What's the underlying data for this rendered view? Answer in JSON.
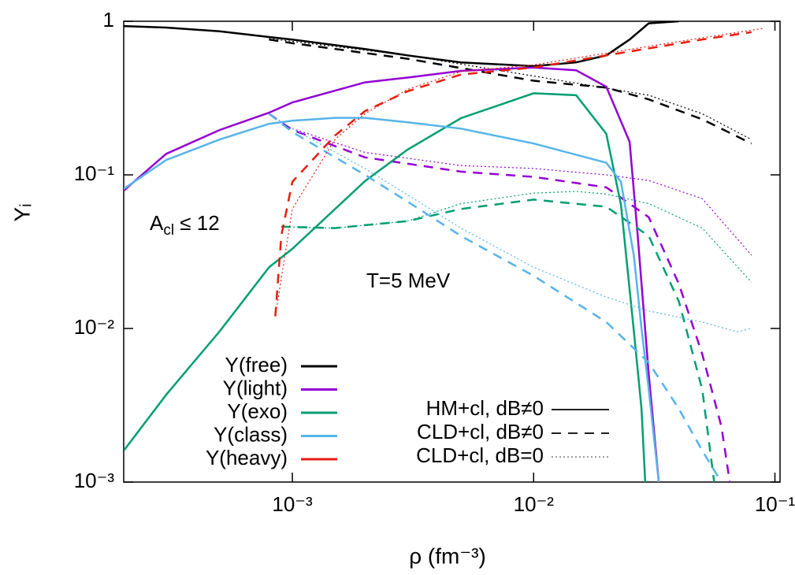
{
  "chart_data": {
    "type": "line",
    "x_label": "ρ (fm⁻³)",
    "y_label": "Yᵢ",
    "x_log": true,
    "y_log": true,
    "xlim": [
      0.0002,
      0.105
    ],
    "ylim": [
      0.001,
      1
    ],
    "xticks": [
      {
        "value": 0.001,
        "label": "10⁻³"
      },
      {
        "value": 0.01,
        "label": "10⁻²"
      },
      {
        "value": 0.1,
        "label": "10⁻¹"
      }
    ],
    "yticks": [
      {
        "value": 0.001,
        "label": "10⁻³"
      },
      {
        "value": 0.01,
        "label": "10⁻²"
      },
      {
        "value": 0.1,
        "label": "10⁻¹"
      },
      1
    ],
    "annotations": [
      {
        "base": "A",
        "sub": "cl",
        "rest": " ≤ 12"
      },
      {
        "base": "T=5 MeV"
      }
    ],
    "models": [
      {
        "name": "HM+cl, dB≠0",
        "dash": "none"
      },
      {
        "name": "CLD+cl, dB≠0",
        "dash": "12,9"
      },
      {
        "name": "CLD+cl, dB=0",
        "dash": "2,3"
      }
    ],
    "series": [
      {
        "name": "Y(free)",
        "color": "#000000",
        "lines": [
          {
            "x": [
              0.0002,
              0.0003,
              0.0005,
              0.0008,
              0.001,
              0.002,
              0.003,
              0.005,
              0.01,
              0.015,
              0.02,
              0.025,
              0.03,
              0.04
            ],
            "values": [
              0.93,
              0.91,
              0.86,
              0.79,
              0.76,
              0.66,
              0.6,
              0.54,
              0.51,
              0.54,
              0.6,
              0.76,
              0.97,
              1.0
            ]
          },
          {
            "x": [
              0.0008,
              0.001,
              0.003,
              0.01,
              0.02,
              0.03,
              0.05,
              0.08
            ],
            "values": [
              0.76,
              0.72,
              0.57,
              0.41,
              0.37,
              0.31,
              0.23,
              0.16
            ]
          },
          {
            "x": [
              0.0008,
              0.001,
              0.003,
              0.01,
              0.03,
              0.05,
              0.08
            ],
            "values": [
              0.77,
              0.74,
              0.6,
              0.44,
              0.33,
              0.25,
              0.17
            ]
          }
        ]
      },
      {
        "name": "Y(light)",
        "color": "#9400d3",
        "lines": [
          {
            "x": [
              0.0002,
              0.0003,
              0.0005,
              0.0008,
              0.001,
              0.002,
              0.003,
              0.005,
              0.01,
              0.015,
              0.02,
              0.025,
              0.027,
              0.03,
              0.033
            ],
            "values": [
              0.079,
              0.137,
              0.196,
              0.254,
              0.296,
              0.4,
              0.43,
              0.475,
              0.5,
              0.48,
              0.375,
              0.164,
              0.04,
              0.005,
              0.001
            ]
          },
          {
            "x": [
              0.0008,
              0.001,
              0.002,
              0.005,
              0.01,
              0.02,
              0.03,
              0.04,
              0.05,
              0.06,
              0.065
            ],
            "values": [
              0.25,
              0.196,
              0.13,
              0.105,
              0.097,
              0.083,
              0.053,
              0.0195,
              0.0068,
              0.0023,
              0.001
            ]
          },
          {
            "x": [
              0.0008,
              0.001,
              0.002,
              0.005,
              0.01,
              0.02,
              0.03,
              0.05,
              0.08
            ],
            "values": [
              0.25,
              0.2,
              0.14,
              0.115,
              0.11,
              0.1,
              0.092,
              0.07,
              0.03
            ]
          }
        ]
      },
      {
        "name": "Y(exo)",
        "color": "#009e73",
        "lines": [
          {
            "x": [
              0.0002,
              0.0003,
              0.0005,
              0.0008,
              0.001,
              0.002,
              0.003,
              0.005,
              0.01,
              0.015,
              0.02,
              0.023,
              0.026,
              0.028,
              0.029
            ],
            "values": [
              0.0016,
              0.0037,
              0.0096,
              0.025,
              0.033,
              0.091,
              0.146,
              0.234,
              0.34,
              0.33,
              0.185,
              0.064,
              0.0097,
              0.003,
              0.001
            ]
          },
          {
            "x": [
              0.0009,
              0.0015,
              0.003,
              0.005,
              0.01,
              0.02,
              0.03,
              0.04,
              0.05,
              0.056
            ],
            "values": [
              0.046,
              0.045,
              0.05,
              0.06,
              0.069,
              0.062,
              0.04,
              0.015,
              0.004,
              0.001
            ]
          },
          {
            "x": [
              0.0009,
              0.0015,
              0.003,
              0.005,
              0.01,
              0.015,
              0.02,
              0.03,
              0.05,
              0.08
            ],
            "values": [
              0.046,
              0.045,
              0.05,
              0.065,
              0.076,
              0.078,
              0.075,
              0.065,
              0.045,
              0.02
            ]
          }
        ]
      },
      {
        "name": "Y(class)",
        "color": "#56b4e9",
        "lines": [
          {
            "x": [
              0.0002,
              0.0003,
              0.0005,
              0.0008,
              0.001,
              0.0015,
              0.002,
              0.003,
              0.005,
              0.01,
              0.02,
              0.023,
              0.026,
              0.028,
              0.03,
              0.033
            ],
            "values": [
              0.081,
              0.125,
              0.17,
              0.215,
              0.225,
              0.235,
              0.235,
              0.22,
              0.2,
              0.16,
              0.12,
              0.09,
              0.03,
              0.01,
              0.004,
              0.001
            ]
          },
          {
            "x": [
              0.0008,
              0.001,
              0.002,
              0.003,
              0.005,
              0.01,
              0.02,
              0.03,
              0.04,
              0.05,
              0.06
            ],
            "values": [
              0.25,
              0.19,
              0.1,
              0.067,
              0.04,
              0.022,
              0.011,
              0.006,
              0.003,
              0.0016,
              0.001
            ]
          },
          {
            "x": [
              0.0008,
              0.001,
              0.002,
              0.005,
              0.01,
              0.02,
              0.03,
              0.05,
              0.07,
              0.08
            ],
            "values": [
              0.25,
              0.2,
              0.11,
              0.045,
              0.025,
              0.016,
              0.013,
              0.011,
              0.0095,
              0.01
            ]
          }
        ]
      },
      {
        "name": "Y(heavy)",
        "color": "#e51e10",
        "lines": [
          null,
          {
            "x": [
              0.00085,
              0.0009,
              0.001,
              0.0015,
              0.002,
              0.003,
              0.005,
              0.01,
              0.02,
              0.05,
              0.08
            ],
            "values": [
              0.012,
              0.04,
              0.09,
              0.18,
              0.26,
              0.35,
              0.45,
              0.5,
              0.6,
              0.76,
              0.85
            ]
          },
          {
            "x": [
              0.00085,
              0.001,
              0.0015,
              0.002,
              0.003,
              0.005,
              0.01,
              0.02,
              0.05,
              0.09
            ],
            "values": [
              0.012,
              0.06,
              0.17,
              0.25,
              0.36,
              0.47,
              0.52,
              0.62,
              0.78,
              0.9
            ]
          }
        ]
      }
    ]
  }
}
